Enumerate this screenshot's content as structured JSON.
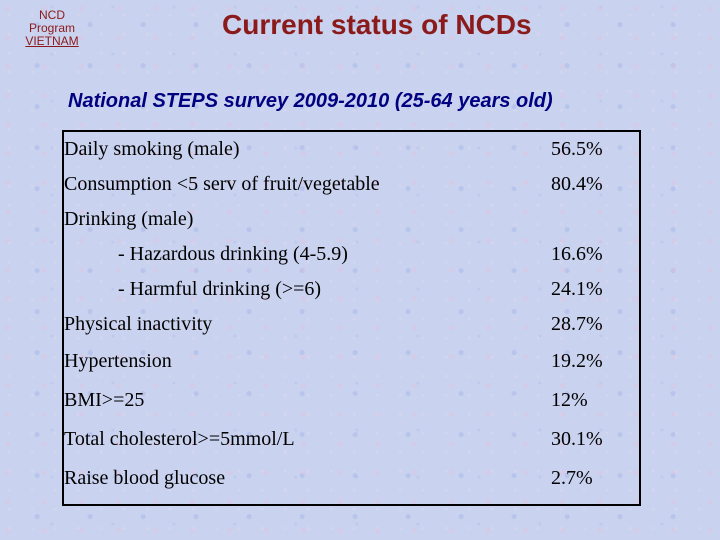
{
  "logo": {
    "line1": "NCD",
    "line2": "Program",
    "line3": "VIETNAM"
  },
  "title": "Current status of NCDs",
  "subtitle": "National STEPS survey 2009-2010 (25-64 years old)",
  "rows": [
    {
      "label": "Daily smoking (male)",
      "value": "56.5%"
    },
    {
      "label": "Consumption <5 serv of fruit/vegetable",
      "value": "80.4%"
    },
    {
      "label": "Drinking (male)",
      "sub": [
        {
          "label": "- Hazardous drinking (4-5.9)",
          "value": "16.6%"
        },
        {
          "label": "- Harmful drinking (>=6)",
          "value": "24.1%"
        }
      ]
    },
    {
      "label": "Physical inactivity",
      "value": "28.7%"
    },
    {
      "label": "Hypertension",
      "value": "19.2%"
    },
    {
      "label": "BMI>=25",
      "value": "12%"
    },
    {
      "label": "Total cholesterol>=5mmol/L",
      "value": "30.1%"
    },
    {
      "label": "Raise blood glucose",
      "value": "2.7%"
    }
  ]
}
